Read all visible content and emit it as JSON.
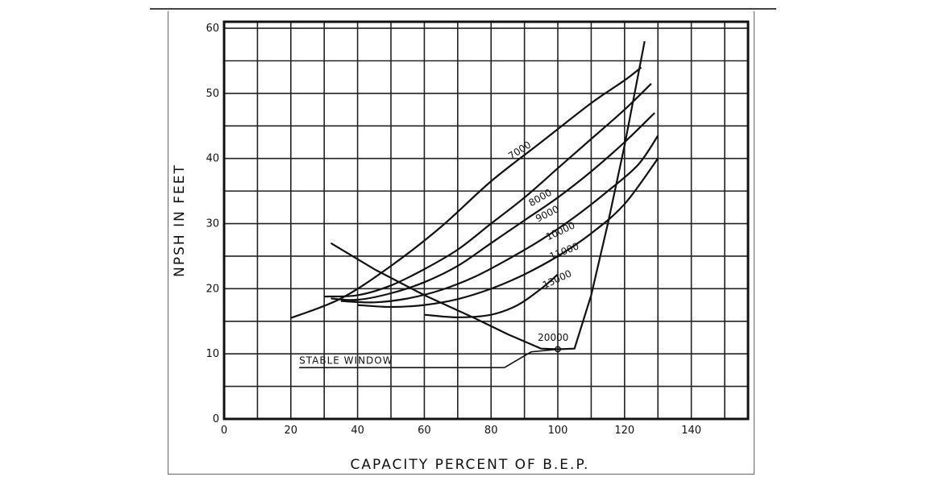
{
  "chart_data": {
    "type": "line",
    "title": "",
    "xlabel": "CAPACITY PERCENT OF B.E.P.",
    "ylabel": "NPSH IN FEET",
    "xlim": [
      0,
      157
    ],
    "ylim": [
      0,
      61
    ],
    "x_ticks": [
      0,
      20,
      40,
      60,
      80,
      100,
      120,
      140
    ],
    "y_ticks": [
      0,
      10,
      20,
      30,
      40,
      50,
      60
    ],
    "grid": true,
    "series": [
      {
        "name": "7000",
        "points": [
          [
            20,
            15.5
          ],
          [
            35,
            18.5
          ],
          [
            50,
            23.5
          ],
          [
            65,
            29.5
          ],
          [
            80,
            36.5
          ],
          [
            95,
            42.5
          ],
          [
            110,
            48.5
          ],
          [
            120,
            52
          ],
          [
            125,
            54
          ]
        ]
      },
      {
        "name": "8000",
        "points": [
          [
            30,
            18.8
          ],
          [
            40,
            19
          ],
          [
            50,
            20.5
          ],
          [
            60,
            23
          ],
          [
            70,
            26
          ],
          [
            80,
            30
          ],
          [
            90,
            34
          ],
          [
            100,
            38.5
          ],
          [
            110,
            43
          ],
          [
            120,
            47.5
          ],
          [
            128,
            51.5
          ]
        ]
      },
      {
        "name": "9000",
        "points": [
          [
            32,
            18.5
          ],
          [
            40,
            18.3
          ],
          [
            50,
            19.3
          ],
          [
            60,
            21
          ],
          [
            70,
            23.5
          ],
          [
            80,
            27
          ],
          [
            90,
            30.5
          ],
          [
            100,
            34
          ],
          [
            110,
            38
          ],
          [
            120,
            42.5
          ],
          [
            129,
            47
          ]
        ]
      },
      {
        "name": "10000",
        "points": [
          [
            35,
            18.1
          ],
          [
            45,
            17.9
          ],
          [
            55,
            18.5
          ],
          [
            65,
            19.8
          ],
          [
            75,
            21.8
          ],
          [
            85,
            24.5
          ],
          [
            95,
            27.5
          ],
          [
            105,
            31
          ],
          [
            115,
            35
          ],
          [
            124,
            39
          ],
          [
            130,
            43.5
          ]
        ]
      },
      {
        "name": "11000",
        "points": [
          [
            40,
            17.5
          ],
          [
            50,
            17.2
          ],
          [
            60,
            17.5
          ],
          [
            70,
            18.4
          ],
          [
            80,
            20
          ],
          [
            90,
            22.2
          ],
          [
            100,
            25
          ],
          [
            110,
            28.5
          ],
          [
            120,
            33
          ],
          [
            130,
            40
          ]
        ]
      },
      {
        "name": "13000",
        "points": [
          [
            60,
            16
          ],
          [
            70,
            15.6
          ],
          [
            80,
            16
          ],
          [
            88,
            17.5
          ],
          [
            95,
            20
          ],
          [
            100,
            22.2
          ]
        ]
      },
      {
        "name": "20000",
        "points": [
          [
            32,
            27
          ],
          [
            45,
            23
          ],
          [
            60,
            19
          ],
          [
            75,
            15.5
          ],
          [
            85,
            13
          ],
          [
            95,
            10.8
          ],
          [
            100,
            10.7
          ],
          [
            105,
            10.8
          ],
          [
            110,
            19
          ],
          [
            115,
            30
          ],
          [
            120,
            42
          ],
          [
            126,
            58
          ]
        ]
      }
    ],
    "annotations": [
      "STABLE WINDOW"
    ]
  }
}
